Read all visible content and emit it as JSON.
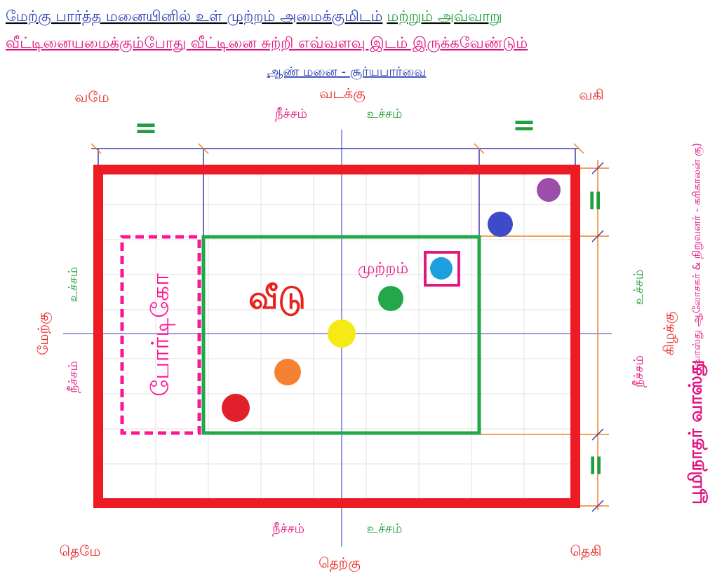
{
  "title": {
    "line1_part1": "மேற்கு பார்த்த மனையினில் உள் முற்றம் அமைக்குமிடம்",
    "line1_part2": "மற்றும் அவ்வாறு",
    "line2": "வீட்டினையமைக்கும்போது வீட்டினை சுற்றி எவ்வளவு இடம் இருக்கவேண்டும்",
    "subtitle": "ஆண் மனை - சூர்யபார்வை"
  },
  "directions": {
    "north_west": "வமே",
    "north": "வடக்கு",
    "north_east": "வகி",
    "west": "மேற்கு",
    "east": "கிழக்கு",
    "south_west": "தெமே",
    "south": "தெற்கு",
    "south_east": "தெகி"
  },
  "labels": {
    "top_low": "நீச்சம்",
    "top_high": "உச்சம்",
    "bottom_low": "நீச்சம்",
    "bottom_high": "உச்சம்",
    "left_high": "உச்சம்",
    "left_low": "நீச்சம்",
    "right_high": "உச்சம்",
    "right_low": "நீச்சம்",
    "equal_top_left": "=",
    "equal_top_right": "=",
    "equal_right_top": "=",
    "equal_right_bottom": "=",
    "house": "வீடு",
    "courtyard": "முற்றம்",
    "portico": "போர்டிகோ"
  },
  "credit": {
    "brand": "பூமிநாதர் வாஸ்து",
    "author": "(வாஸ்து ஆலோசகர் & நிறுவனர் - கரிகாலன் கு)"
  }
}
